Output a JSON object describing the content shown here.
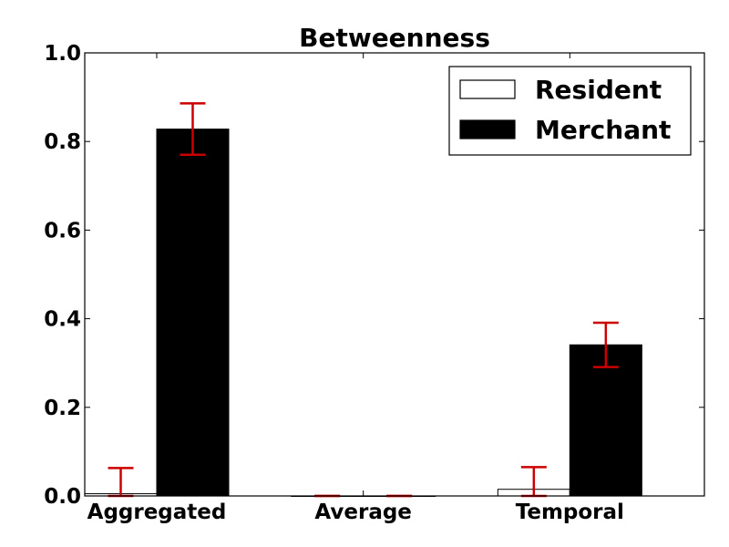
{
  "chart_data": {
    "type": "bar",
    "title": "Betweenness",
    "xlabel": "",
    "ylabel": "",
    "categories": [
      "Aggregated",
      "Average",
      "Temporal"
    ],
    "ylim": [
      0,
      1.0
    ],
    "yticks": [
      "0.0",
      "0.2",
      "0.4",
      "0.6",
      "0.8",
      "1.0"
    ],
    "grid": false,
    "legend_position": "top-right",
    "error_bar_color": "#cc0000",
    "series": [
      {
        "name": "Resident",
        "color": "#ffffff",
        "edge_color": "#000000",
        "values": [
          0.005,
          0.0,
          0.015
        ],
        "errors": [
          0.058,
          0.0,
          0.05
        ]
      },
      {
        "name": "Merchant",
        "color": "#000000",
        "edge_color": "#000000",
        "values": [
          0.828,
          0.0,
          0.341
        ],
        "errors": [
          0.058,
          0.0,
          0.05
        ]
      }
    ]
  }
}
